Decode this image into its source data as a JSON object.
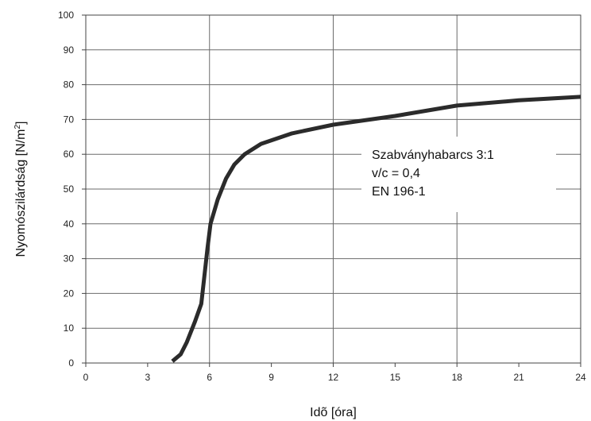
{
  "chart_data": {
    "type": "line",
    "xlabel": "Idõ [óra]",
    "ylabel_main": "Nyomószilárdság [N/m",
    "ylabel_sup": "2",
    "ylabel_end": "]",
    "xlim": [
      0,
      24
    ],
    "ylim": [
      0,
      100
    ],
    "x_ticks": [
      "0",
      "3",
      "6",
      "9",
      "12",
      "15",
      "18",
      "21",
      "24"
    ],
    "y_ticks": [
      "0",
      "10",
      "20",
      "30",
      "40",
      "50",
      "60",
      "70",
      "80",
      "90",
      "100"
    ],
    "grid": "major lines at every other tick",
    "series": [
      {
        "color": "#2b2b2b",
        "points": [
          {
            "x": 4.2,
            "y": 0.5
          },
          {
            "x": 4.6,
            "y": 2.5
          },
          {
            "x": 4.9,
            "y": 6
          },
          {
            "x": 5.3,
            "y": 12
          },
          {
            "x": 5.6,
            "y": 17
          },
          {
            "x": 5.75,
            "y": 25
          },
          {
            "x": 5.9,
            "y": 33
          },
          {
            "x": 6.05,
            "y": 40
          },
          {
            "x": 6.4,
            "y": 47
          },
          {
            "x": 6.8,
            "y": 53
          },
          {
            "x": 7.2,
            "y": 57
          },
          {
            "x": 7.7,
            "y": 60
          },
          {
            "x": 8.5,
            "y": 63
          },
          {
            "x": 10,
            "y": 66
          },
          {
            "x": 12,
            "y": 68.5
          },
          {
            "x": 15,
            "y": 71
          },
          {
            "x": 18,
            "y": 74
          },
          {
            "x": 21,
            "y": 75.5
          },
          {
            "x": 24,
            "y": 76.5
          }
        ]
      }
    ],
    "annotation": {
      "lines": [
        "Szabványhabarcs 3:1",
        "v/c = 0,4",
        "EN 196-1"
      ]
    }
  }
}
